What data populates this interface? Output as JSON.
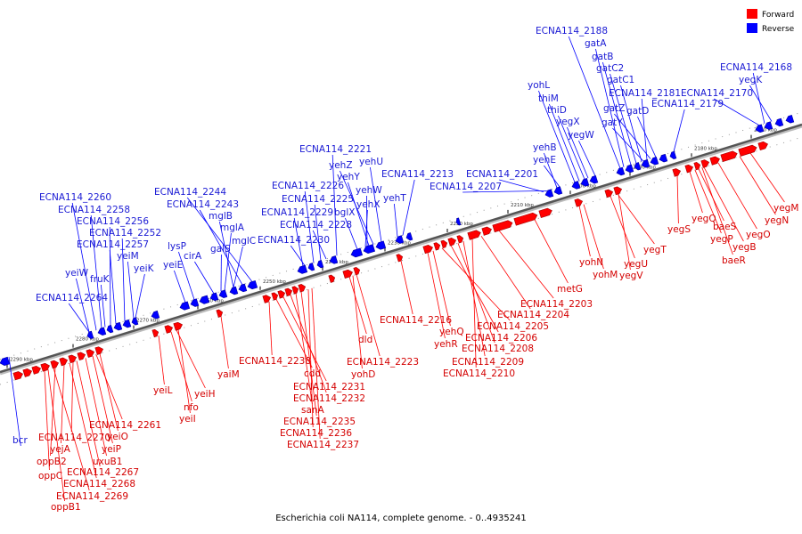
{
  "caption": "Escherichia coli NA114, complete genome. - 0..4935241",
  "legend": [
    {
      "label": "Forward",
      "color": "#ff0000"
    },
    {
      "label": "Reverse",
      "color": "#0000ff"
    }
  ],
  "ticks": [
    "2290 kbp",
    "2280 kbp",
    "2270 kbp",
    "2260 kbp",
    "2250 kbp",
    "2240 kbp",
    "2230 kbp",
    "2220 kbp",
    "2210 kbp",
    "2200 kbp",
    "2190 kbp",
    "2180 kbp",
    "2170 kbp"
  ],
  "reverse_labels": [
    "yehU",
    "yehZ",
    "yehY",
    "yehW",
    "yehX",
    "bglX",
    "ECNA114_2221",
    "ECNA114_2226",
    "ECNA114_2225",
    "ECNA114_2229",
    "ECNA114_2228",
    "ECNA114_2230",
    "ECNA114_2213",
    "yehT",
    "ECNA114_2244",
    "ECNA114_2243",
    "mglB",
    "mglA",
    "galS",
    "mglC",
    "cirA",
    "lysP",
    "yeiE",
    "ECNA114_2260",
    "ECNA114_2258",
    "ECNA114_2256",
    "ECNA114_2252",
    "ECNA114_2257",
    "yeiM",
    "yeiK",
    "yeiW",
    "fruK",
    "ECNA114_2264",
    "bcr",
    "ECNA114_2201",
    "ECNA114_2207",
    "yehB",
    "yehE",
    "yohL",
    "thiM",
    "thiD",
    "yegX",
    "yegW",
    "ECNA114_2188",
    "gatA",
    "gatB",
    "gatC2",
    "gatC1",
    "ECNA114_2181",
    "gatZ",
    "gatD",
    "gatY",
    "ECNA114_2179",
    "ECNA114_2170",
    "ECNA114_2168",
    "yegK"
  ],
  "forward_labels": [
    "ECNA114_2216",
    "yehQ",
    "yehR",
    "ECNA114_2205",
    "ECNA114_2206",
    "ECNA114_2208",
    "ECNA114_2209",
    "ECNA114_2210",
    "ECNA114_2204",
    "ECNA114_2203",
    "metG",
    "yohN",
    "yohM",
    "yegU",
    "yegV",
    "yegT",
    "yegS",
    "yegQ",
    "baeS",
    "yegP",
    "yegB",
    "baeR",
    "yegO",
    "yegN",
    "yegM",
    "dld",
    "yohD",
    "ECNA114_2223",
    "ECNA114_2238",
    "cdd",
    "ECNA114_2231",
    "ECNA114_2232",
    "sanA",
    "ECNA114_2235",
    "ECNA114_2236",
    "ECNA114_2237",
    "yaiM",
    "yeiL",
    "nfo",
    "yeiH",
    "yeiI",
    "ECNA114_2261",
    "yeiO",
    "yeiP",
    "ECNA114_2270",
    "yejA",
    "oppB2",
    "uxuB1",
    "oppC",
    "ECNA114_2267",
    "ECNA114_2268",
    "ECNA114_2269",
    "oppB1"
  ]
}
